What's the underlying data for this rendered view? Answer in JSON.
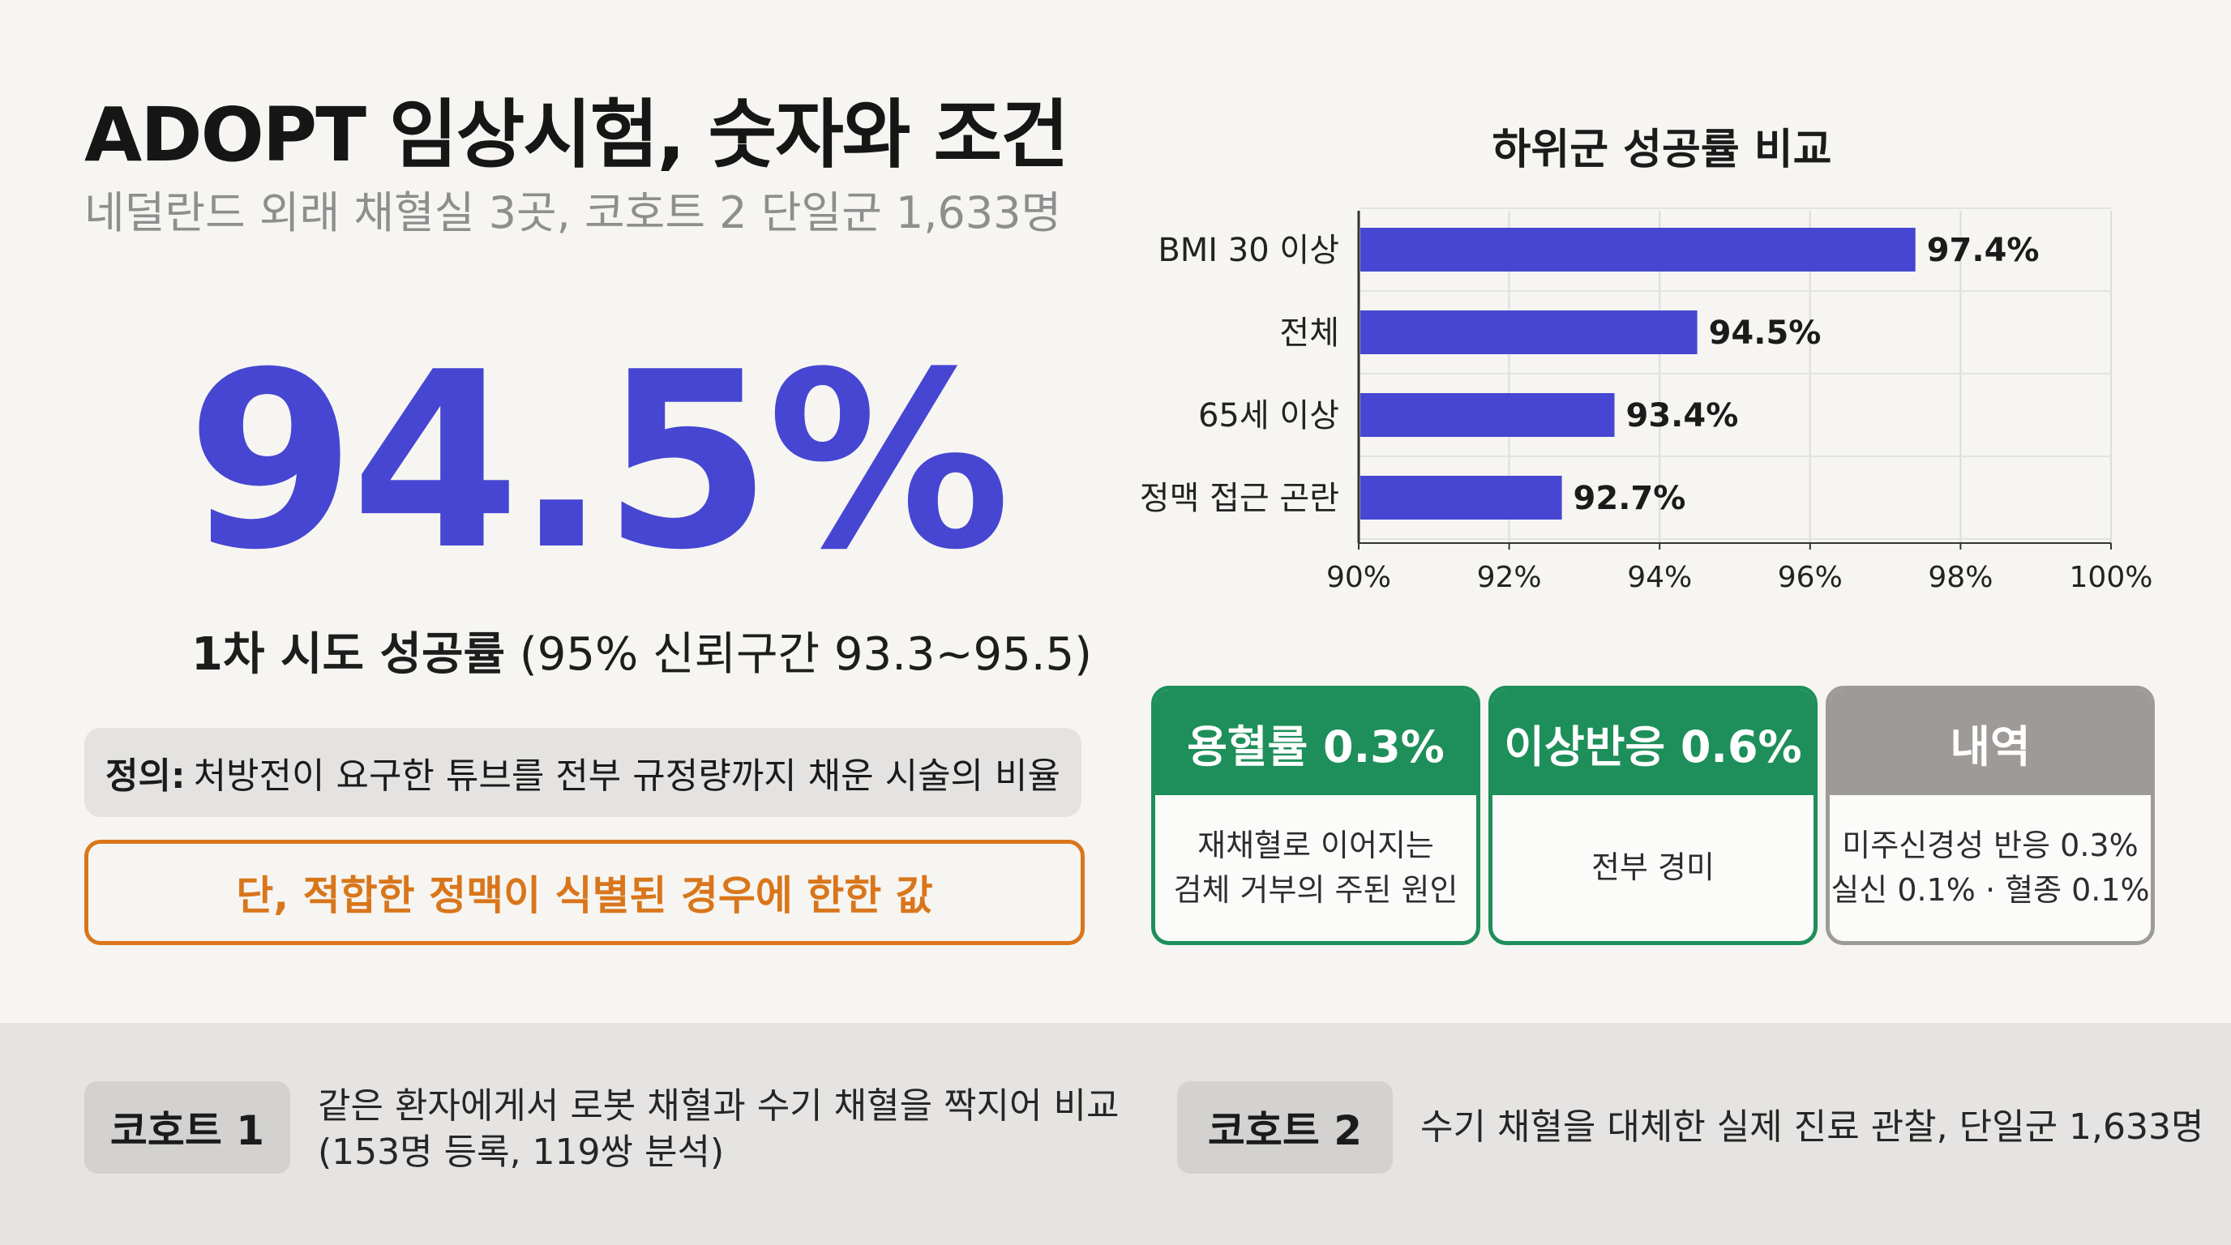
{
  "header": {
    "title": "ADOPT 임상시험, 숫자와 조건",
    "subtitle": "네덜란드 외래 채혈실 3곳, 코호트 2 단일군 1,633명"
  },
  "headline": {
    "value": "94.5%",
    "label_bold": "1차 시도 성공률",
    "label_rest": " (95% 신뢰구간 93.3~95.5)"
  },
  "definition": {
    "label": "정의:",
    "text": "처방전이 요구한 튜브를 전부 규정량까지 채운 시술의 비율"
  },
  "caveat": "단, 적합한 정맥이 식별된 경우에 한한 값",
  "chart_data": {
    "type": "bar",
    "orientation": "horizontal",
    "title": "하위군 성공률 비교",
    "categories": [
      "BMI 30 이상",
      "전체",
      "65세 이상",
      "정맥 접근 곤란"
    ],
    "values": [
      97.4,
      94.5,
      93.4,
      92.7
    ],
    "value_labels": [
      "97.4%",
      "94.5%",
      "93.4%",
      "92.7%"
    ],
    "xlim": [
      90,
      100
    ],
    "xticks": [
      90,
      92,
      94,
      96,
      98,
      100
    ],
    "xtick_labels": [
      "90%",
      "92%",
      "94%",
      "96%",
      "98%",
      "100%"
    ],
    "grid": true,
    "bar_color": "#4646d2"
  },
  "cards": [
    {
      "header": "용혈률 0.3%",
      "lines": [
        "재채혈로 이어지는",
        "검체 거부의 주된 원인"
      ],
      "color": "#1e8f5a"
    },
    {
      "header": "이상반응 0.6%",
      "lines": [
        "전부 경미"
      ],
      "color": "#1e8f5a"
    },
    {
      "header": "내역",
      "lines": [
        "미주신경성 반응 0.3%",
        "실신 0.1% · 혈종 0.1%"
      ],
      "color": "#9d9a98"
    }
  ],
  "cohorts": [
    {
      "label": "코호트 1",
      "lines": [
        "같은 환자에게서 로봇 채혈과 수기 채혈을 짝지어 비교",
        "(153명 등록, 119쌍 분석)"
      ]
    },
    {
      "label": "코호트 2",
      "lines": [
        "수기 채혈을 대체한 실제 진료 관찰, 단일군 1,633명"
      ]
    }
  ],
  "colors": {
    "accent": "#4646d2",
    "warning": "#d9761b",
    "success": "#1e8f5a",
    "neutral": "#9d9a98"
  }
}
